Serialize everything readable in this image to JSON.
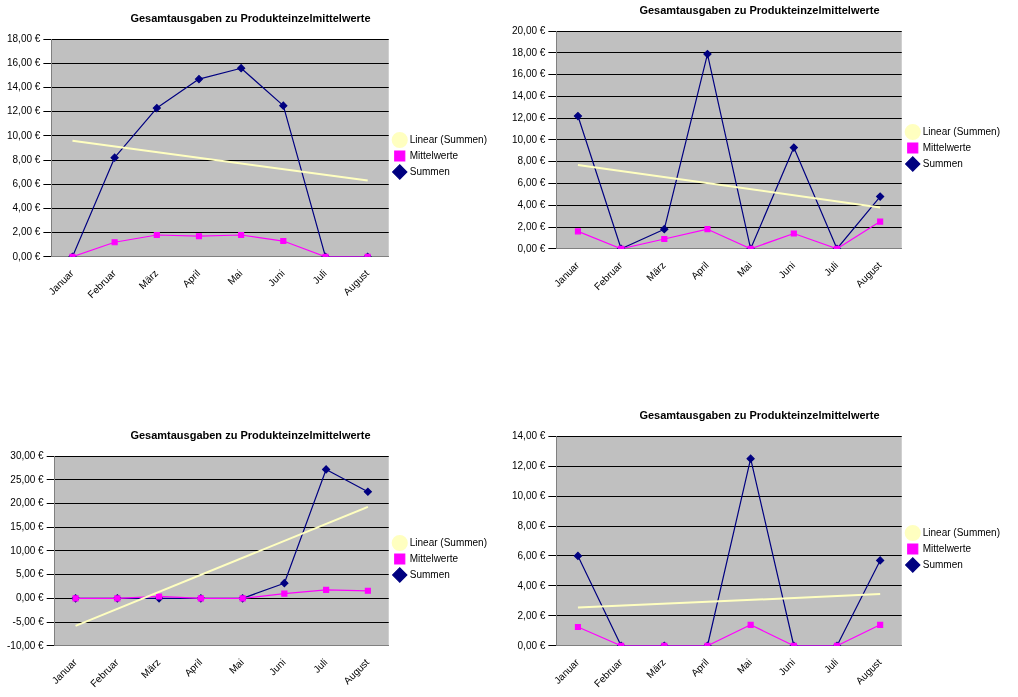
{
  "chart_data": [
    {
      "type": "line",
      "title": "Gesamtausgaben zu Produkteinzelmittelwerte",
      "categories": [
        "Januar",
        "Februar",
        "März",
        "April",
        "Mai",
        "Juni",
        "Juli",
        "August"
      ],
      "series": [
        {
          "name": "Summen",
          "color": "#000080",
          "marker": "diamond",
          "values": [
            0,
            8.2,
            12.3,
            14.7,
            15.6,
            12.5,
            0,
            0
          ]
        },
        {
          "name": "Mittelwerte",
          "color": "#ff00ff",
          "marker": "square",
          "values": [
            0,
            1.2,
            1.8,
            1.7,
            1.8,
            1.3,
            0,
            0
          ]
        },
        {
          "name": "Linear (Summen)",
          "color": "#ffffc0",
          "marker": "none",
          "values": [
            9.6,
            null,
            null,
            null,
            null,
            null,
            null,
            6.3
          ]
        }
      ],
      "ylim": [
        0,
        18
      ],
      "yticks": [
        {
          "value": 0,
          "label": "0,00 €"
        },
        {
          "value": 2,
          "label": "2,00 €"
        },
        {
          "value": 4,
          "label": "4,00 €"
        },
        {
          "value": 6,
          "label": "6,00 €"
        },
        {
          "value": 8,
          "label": "8,00 €"
        },
        {
          "value": 10,
          "label": "10,00 €"
        },
        {
          "value": 12,
          "label": "12,00 €"
        },
        {
          "value": 14,
          "label": "14,00 €"
        },
        {
          "value": 16,
          "label": "16,00 €"
        },
        {
          "value": 18,
          "label": "18,00 €"
        }
      ],
      "grid": "y",
      "legend": "right"
    },
    {
      "type": "line",
      "title": "Gesamtausgaben zu Produkteinzelmittelwerte",
      "categories": [
        "Januar",
        "Februar",
        "März",
        "April",
        "Mai",
        "Juni",
        "Juli",
        "August"
      ],
      "series": [
        {
          "name": "Summen",
          "color": "#000080",
          "marker": "diamond",
          "values": [
            12.2,
            0,
            1.8,
            17.9,
            0,
            9.3,
            0,
            4.8
          ]
        },
        {
          "name": "Mittelwerte",
          "color": "#ff00ff",
          "marker": "square",
          "values": [
            1.6,
            0,
            0.9,
            1.8,
            0,
            1.4,
            0,
            2.5
          ]
        },
        {
          "name": "Linear (Summen)",
          "color": "#ffffc0",
          "marker": "none",
          "values": [
            7.7,
            null,
            null,
            null,
            null,
            null,
            null,
            3.8
          ]
        }
      ],
      "ylim": [
        0,
        20
      ],
      "yticks": [
        {
          "value": 0,
          "label": "0,00 €"
        },
        {
          "value": 2,
          "label": "2,00 €"
        },
        {
          "value": 4,
          "label": "4,00 €"
        },
        {
          "value": 6,
          "label": "6,00 €"
        },
        {
          "value": 8,
          "label": "8,00 €"
        },
        {
          "value": 10,
          "label": "10,00 €"
        },
        {
          "value": 12,
          "label": "12,00 €"
        },
        {
          "value": 14,
          "label": "14,00 €"
        },
        {
          "value": 16,
          "label": "16,00 €"
        },
        {
          "value": 18,
          "label": "18,00 €"
        },
        {
          "value": 20,
          "label": "20,00 €"
        }
      ],
      "grid": "y",
      "legend": "right"
    },
    {
      "type": "line",
      "title": "Gesamtausgaben zu Produkteinzelmittelwerte",
      "categories": [
        "Januar",
        "Februar",
        "März",
        "April",
        "Mai",
        "Juni",
        "Juli",
        "August"
      ],
      "series": [
        {
          "name": "Summen",
          "color": "#000080",
          "marker": "diamond",
          "values": [
            0,
            0,
            0,
            0,
            0,
            3.2,
            27.2,
            22.5
          ]
        },
        {
          "name": "Mittelwerte",
          "color": "#ff00ff",
          "marker": "square",
          "values": [
            0,
            0,
            0.4,
            0,
            0,
            1.0,
            1.8,
            1.6
          ]
        },
        {
          "name": "Linear (Summen)",
          "color": "#ffffc0",
          "marker": "none",
          "values": [
            -5.8,
            null,
            null,
            null,
            null,
            null,
            null,
            19.3
          ]
        }
      ],
      "ylim": [
        -10,
        30
      ],
      "yticks": [
        {
          "value": -10,
          "label": "-10,00 €"
        },
        {
          "value": -5,
          "label": "-5,00 €"
        },
        {
          "value": 0,
          "label": "0,00 €"
        },
        {
          "value": 5,
          "label": "5,00 €"
        },
        {
          "value": 10,
          "label": "10,00 €"
        },
        {
          "value": 15,
          "label": "15,00 €"
        },
        {
          "value": 20,
          "label": "20,00 €"
        },
        {
          "value": 25,
          "label": "25,00 €"
        },
        {
          "value": 30,
          "label": "30,00 €"
        }
      ],
      "grid": "y",
      "legend": "right"
    },
    {
      "type": "line",
      "title": "Gesamtausgaben zu Produkteinzelmittelwerte",
      "categories": [
        "Januar",
        "Februar",
        "März",
        "April",
        "Mai",
        "Juni",
        "Juli",
        "August"
      ],
      "series": [
        {
          "name": "Summen",
          "color": "#000080",
          "marker": "diamond",
          "values": [
            6,
            0,
            0,
            0,
            12.5,
            0,
            0,
            5.7
          ]
        },
        {
          "name": "Mittelwerte",
          "color": "#ff00ff",
          "marker": "square",
          "values": [
            1.25,
            0,
            0,
            0,
            1.4,
            0,
            0,
            1.4
          ]
        },
        {
          "name": "Linear (Summen)",
          "color": "#ffffc0",
          "marker": "none",
          "values": [
            2.55,
            null,
            null,
            null,
            null,
            null,
            null,
            3.45
          ]
        }
      ],
      "ylim": [
        0,
        14
      ],
      "yticks": [
        {
          "value": 0,
          "label": "0,00 €"
        },
        {
          "value": 2,
          "label": "2,00 €"
        },
        {
          "value": 4,
          "label": "4,00 €"
        },
        {
          "value": 6,
          "label": "6,00 €"
        },
        {
          "value": 8,
          "label": "8,00 €"
        },
        {
          "value": 10,
          "label": "10,00 €"
        },
        {
          "value": 12,
          "label": "12,00 €"
        },
        {
          "value": 14,
          "label": "14,00 €"
        }
      ],
      "grid": "y",
      "legend": "right"
    }
  ]
}
